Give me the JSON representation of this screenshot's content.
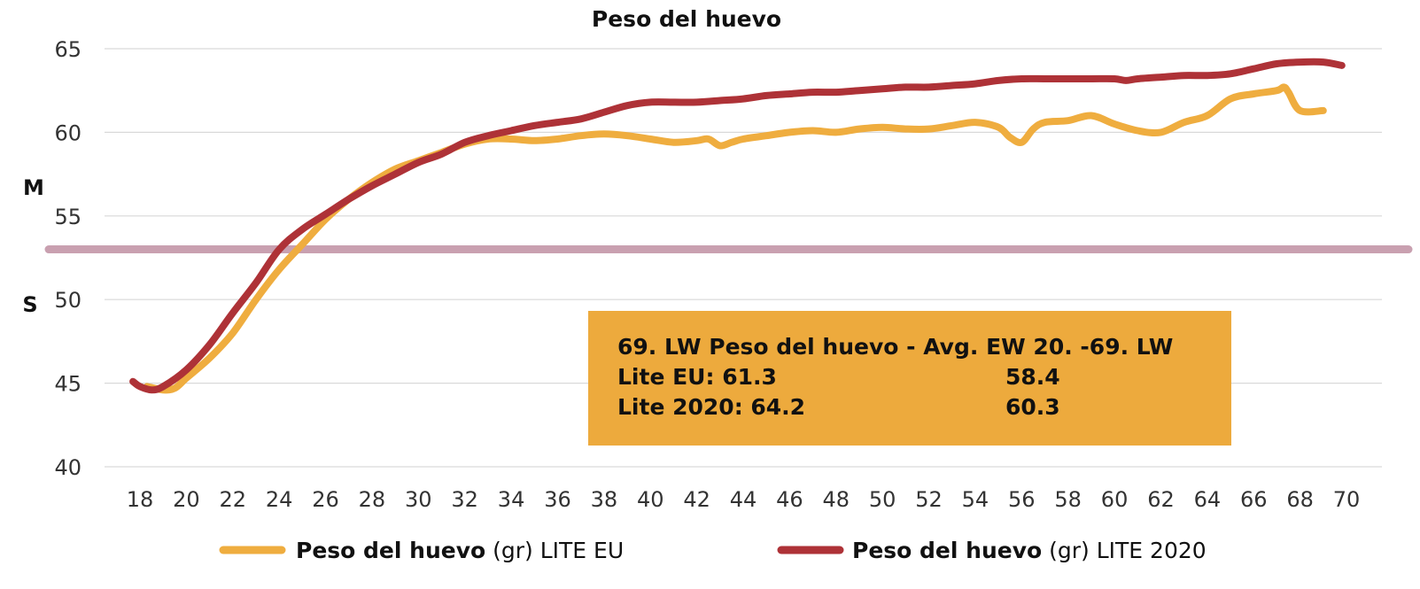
{
  "chart_data": {
    "type": "line",
    "title": "Peso del huevo",
    "xlabel": "",
    "ylabel": "",
    "xlim": [
      18,
      70
    ],
    "ylim": [
      40,
      65
    ],
    "x_ticks": [
      18,
      20,
      22,
      24,
      26,
      28,
      30,
      32,
      34,
      36,
      38,
      40,
      42,
      44,
      46,
      48,
      50,
      52,
      54,
      56,
      58,
      60,
      62,
      64,
      66,
      68,
      70
    ],
    "y_ticks": [
      40,
      45,
      50,
      55,
      60,
      65
    ],
    "grid": true,
    "colors": {
      "lite_eu": "#EFAD3F",
      "lite_2020": "#AE3237",
      "threshold": "#C9A0B0",
      "box": "#EDAA3D",
      "grid": "#d9d9d9"
    },
    "threshold": {
      "value": 53,
      "label_above": "M",
      "label_below": "S"
    },
    "series": [
      {
        "key": "lite_eu",
        "name_bold": "Peso del huevo",
        "name_rest": " (gr) LITE EU",
        "x": [
          18.3,
          19,
          19.5,
          20,
          21,
          22,
          23,
          24,
          25,
          26,
          27,
          28,
          29,
          30,
          31,
          32,
          33,
          34,
          35,
          36,
          37,
          38,
          39,
          40,
          41,
          42,
          42.5,
          43,
          43.5,
          44,
          45,
          46,
          47,
          48,
          49,
          50,
          51,
          52,
          53,
          54,
          55,
          55.5,
          56,
          56.5,
          57,
          58,
          59,
          60,
          61,
          62,
          63,
          64,
          65,
          66,
          67,
          67.3,
          67.5,
          68,
          69
        ],
        "values": [
          44.8,
          44.6,
          44.7,
          45.3,
          46.5,
          48,
          50,
          51.8,
          53.3,
          54.8,
          56,
          57,
          57.8,
          58.3,
          58.8,
          59.3,
          59.6,
          59.6,
          59.5,
          59.6,
          59.8,
          59.9,
          59.8,
          59.6,
          59.4,
          59.5,
          59.6,
          59.2,
          59.4,
          59.6,
          59.8,
          60.0,
          60.1,
          60.0,
          60.2,
          60.3,
          60.2,
          60.2,
          60.4,
          60.6,
          60.3,
          59.7,
          59.4,
          60.2,
          60.6,
          60.7,
          61.0,
          60.5,
          60.1,
          60.0,
          60.6,
          61.0,
          62.0,
          62.3,
          62.5,
          62.7,
          62.4,
          61.3,
          61.3
        ]
      },
      {
        "key": "lite_2020",
        "name_bold": "Peso del huevo",
        "name_rest": " (gr) LITE 2020",
        "x": [
          17.7,
          18,
          18.5,
          19,
          20,
          21,
          22,
          23,
          24,
          25,
          26,
          27,
          28,
          29,
          30,
          31,
          32,
          33,
          34,
          35,
          36,
          37,
          38,
          39,
          40,
          41,
          42,
          43,
          44,
          45,
          46,
          47,
          48,
          49,
          50,
          51,
          52,
          53,
          54,
          55,
          56,
          57,
          58,
          59,
          60,
          60.5,
          61,
          62,
          63,
          64,
          65,
          66,
          67,
          68,
          69,
          69.8
        ],
        "values": [
          45.1,
          44.8,
          44.6,
          44.8,
          45.8,
          47.3,
          49.2,
          51,
          53,
          54.2,
          55.1,
          56,
          56.8,
          57.5,
          58.2,
          58.7,
          59.4,
          59.8,
          60.1,
          60.4,
          60.6,
          60.8,
          61.2,
          61.6,
          61.8,
          61.8,
          61.8,
          61.9,
          62.0,
          62.2,
          62.3,
          62.4,
          62.4,
          62.5,
          62.6,
          62.7,
          62.7,
          62.8,
          62.9,
          63.1,
          63.2,
          63.2,
          63.2,
          63.2,
          63.2,
          63.1,
          63.2,
          63.3,
          63.4,
          63.4,
          63.5,
          63.8,
          64.1,
          64.2,
          64.2,
          64.0
        ]
      }
    ],
    "info_box": {
      "header": "69. LW Peso del huevo - Avg. EW 20. -69. LW",
      "row1_left": "Lite EU: 61.3",
      "row1_right": "58.4",
      "row2_left": "Lite 2020: 64.2",
      "row2_right": "60.3"
    }
  }
}
